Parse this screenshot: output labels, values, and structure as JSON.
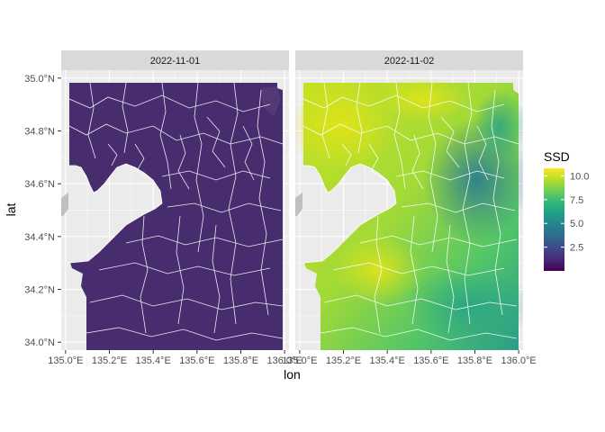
{
  "chart_data": {
    "type": "heatmap",
    "title": "",
    "xlabel": "lon",
    "ylabel": "lat",
    "xlim": [
      134.98,
      136.02
    ],
    "ylim": [
      33.97,
      35.03
    ],
    "x_ticks": [
      135.0,
      135.2,
      135.4,
      135.6,
      135.8,
      136.0
    ],
    "x_tick_labels": [
      "135.0°E",
      "135.2°E",
      "135.4°E",
      "135.6°E",
      "135.8°E",
      "136.0°E"
    ],
    "y_ticks": [
      34.0,
      34.2,
      34.4,
      34.6,
      34.8,
      35.0
    ],
    "y_tick_labels": [
      "34.0°N",
      "34.2°N",
      "34.4°N",
      "34.6°N",
      "34.8°N",
      "35.0°N"
    ],
    "grid": true,
    "facets": [
      {
        "label": "2022-11-01",
        "ssd_range": [
          0.0,
          0.3
        ],
        "description_value": 0.0
      },
      {
        "label": "2022-11-02",
        "ssd_range": [
          2.5,
          10.5
        ]
      }
    ],
    "legend": {
      "title": "SSD",
      "position": "right",
      "ticks": [
        2.5,
        5.0,
        7.5,
        10.0
      ],
      "tick_labels": [
        "2.5",
        "5.0",
        "7.5",
        "10.0"
      ],
      "range": [
        0,
        10.8
      ],
      "colormap": "viridis"
    },
    "colors": {
      "panel_bg": "#ebebeb",
      "strip_bg": "#d9d9d9",
      "grid": "#ffffff",
      "viridis": [
        "#440154",
        "#482878",
        "#3e4989",
        "#31688e",
        "#26828e",
        "#1f9e89",
        "#35b779",
        "#6ece58",
        "#b5de2b",
        "#fde725"
      ]
    }
  }
}
